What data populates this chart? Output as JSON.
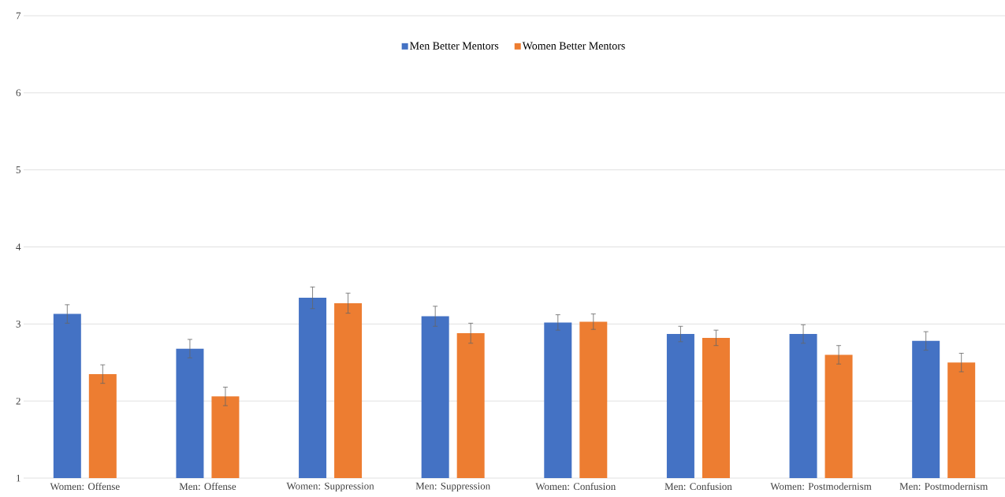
{
  "chart_data": {
    "type": "bar",
    "categories": [
      "Women: Offense",
      "Men: Offense",
      "Women: Suppression",
      "Men: Suppression",
      "Women: Confusion",
      "Men: Confusion",
      "Women: Postmodernism",
      "Men: Postmodernism"
    ],
    "series": [
      {
        "name": "Men Better Mentors",
        "color": "#4472c4",
        "values": [
          3.13,
          2.68,
          3.34,
          3.1,
          3.02,
          2.87,
          2.87,
          2.78
        ],
        "errors": [
          0.12,
          0.12,
          0.14,
          0.13,
          0.1,
          0.1,
          0.12,
          0.12
        ]
      },
      {
        "name": "Women Better Mentors",
        "color": "#ed7d31",
        "values": [
          2.35,
          2.06,
          3.27,
          2.88,
          3.03,
          2.82,
          2.6,
          2.5
        ],
        "errors": [
          0.12,
          0.12,
          0.13,
          0.13,
          0.1,
          0.1,
          0.12,
          0.12
        ]
      }
    ],
    "ylim": [
      1,
      7
    ],
    "yticks": [
      1,
      2,
      3,
      4,
      5,
      6,
      7
    ],
    "grid": "y",
    "legend": "top"
  }
}
